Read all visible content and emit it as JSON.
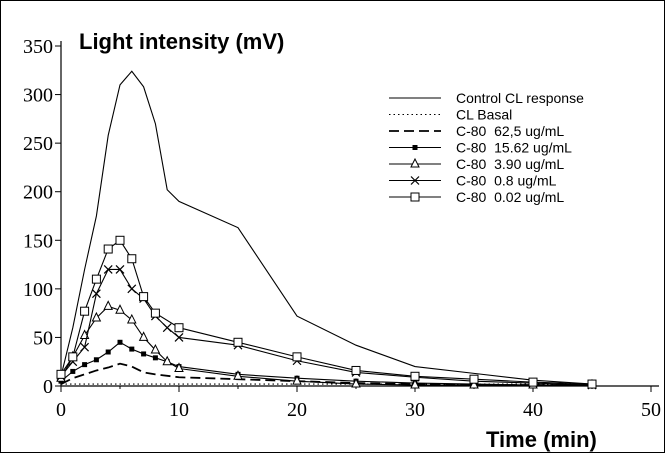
{
  "chart_data": {
    "type": "line",
    "title": "Light intensity (mV)",
    "xlabel": "Time (min)",
    "ylabel": "",
    "xlim": [
      0,
      50
    ],
    "ylim": [
      0,
      350
    ],
    "xticks": [
      "0",
      "10",
      "20",
      "30",
      "40",
      "50"
    ],
    "yticks": [
      "0",
      "50",
      "100",
      "150",
      "200",
      "250",
      "300",
      "350"
    ],
    "grid": false,
    "legend_position": "top-right",
    "series": [
      {
        "name": "Control CL response",
        "color": "#000000",
        "line": "solid",
        "marker": "none",
        "x": [
          0,
          1,
          2,
          3,
          4,
          5,
          6,
          7,
          8,
          9,
          10,
          15,
          20,
          25,
          30,
          35,
          40,
          45
        ],
        "y": [
          10,
          60,
          120,
          175,
          258,
          310,
          324,
          308,
          270,
          202,
          190,
          163,
          72,
          42,
          20,
          13,
          6,
          2
        ]
      },
      {
        "name": "CL Basal",
        "color": "#000000",
        "line": "dotted",
        "marker": "none",
        "x": [
          0,
          5,
          10,
          15,
          20,
          25,
          30,
          35,
          40,
          45
        ],
        "y": [
          2,
          2,
          2,
          2,
          2,
          2,
          2,
          2,
          2,
          2
        ]
      },
      {
        "name": "C-80  62,5 ug/mL",
        "color": "#000000",
        "line": "dashed",
        "marker": "none",
        "x": [
          0,
          1,
          2,
          3,
          4,
          5,
          6,
          7,
          8,
          10,
          15,
          20,
          25,
          30,
          35,
          40,
          45
        ],
        "y": [
          2,
          8,
          12,
          16,
          19,
          23,
          20,
          14,
          12,
          9,
          7,
          5,
          3,
          2,
          1,
          1,
          1
        ]
      },
      {
        "name": "C-80  15.62 ug/mL",
        "color": "#000000",
        "line": "solid",
        "marker": "square-filled",
        "x": [
          0,
          1,
          2,
          3,
          4,
          5,
          6,
          7,
          8,
          9,
          10,
          15,
          20,
          25,
          30,
          35,
          40,
          45
        ],
        "y": [
          5,
          15,
          22,
          27,
          35,
          45,
          38,
          33,
          29,
          25,
          20,
          12,
          8,
          5,
          3,
          2,
          1,
          1
        ]
      },
      {
        "name": "C-80  3.90 ug/mL",
        "color": "#000000",
        "line": "solid",
        "marker": "triangle-open",
        "x": [
          0,
          1,
          2,
          3,
          4,
          5,
          6,
          7,
          8,
          9,
          10,
          15,
          20,
          25,
          30,
          35,
          40,
          45
        ],
        "y": [
          8,
          30,
          52,
          70,
          82,
          78,
          68,
          50,
          37,
          25,
          18,
          10,
          5,
          2,
          1,
          1,
          1,
          1
        ]
      },
      {
        "name": "C-80  0.8 ug/mL",
        "color": "#000000",
        "line": "solid",
        "marker": "cross",
        "x": [
          0,
          1,
          2,
          3,
          4,
          5,
          6,
          7,
          8,
          9,
          10,
          15,
          20,
          25,
          30,
          35,
          40,
          45
        ],
        "y": [
          10,
          25,
          40,
          95,
          120,
          120,
          100,
          90,
          72,
          60,
          50,
          42,
          26,
          14,
          9,
          5,
          3,
          1
        ]
      },
      {
        "name": "C-80  0.02 ug/mL",
        "color": "#000000",
        "line": "solid",
        "marker": "square-open",
        "x": [
          0,
          1,
          2,
          3,
          4,
          5,
          6,
          7,
          8,
          10,
          15,
          20,
          25,
          30,
          35,
          40,
          45
        ],
        "y": [
          12,
          30,
          77,
          110,
          141,
          150,
          131,
          92,
          75,
          60,
          45,
          30,
          16,
          10,
          7,
          4,
          2
        ]
      }
    ]
  }
}
